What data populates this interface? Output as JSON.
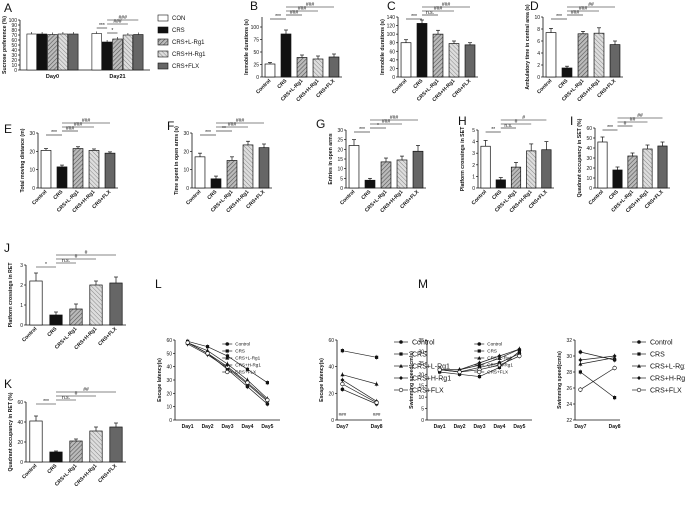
{
  "legend": {
    "entries": [
      {
        "label": "CON",
        "fill": "#ffffff"
      },
      {
        "label": "CRS",
        "fill": "#111111"
      },
      {
        "label": "CRS+L-Rg1",
        "fill": "#777777"
      },
      {
        "label": "CRS+H-Rg1",
        "fill": "#aaaaaa"
      },
      {
        "label": "CRS+FLX",
        "fill": "#555555"
      }
    ]
  },
  "chart_data": [
    {
      "panel": "A",
      "type": "bar",
      "ylabel": "Sucrose preference (%)",
      "ylim": [
        0,
        100
      ],
      "yticks": [
        0,
        10,
        20,
        30,
        40,
        50,
        60,
        70,
        80,
        90,
        100
      ],
      "categories": [
        "Day0",
        "Day21"
      ],
      "series": [
        {
          "name": "CON",
          "values": [
            72,
            73
          ]
        },
        {
          "name": "CRS",
          "values": [
            72,
            56
          ]
        },
        {
          "name": "CRS+L-Rg1",
          "values": [
            71,
            62
          ]
        },
        {
          "name": "CRS+H-Rg1",
          "values": [
            72,
            70
          ]
        },
        {
          "name": "CRS+FLX",
          "values": [
            72,
            71
          ]
        }
      ],
      "annotations": [
        "***",
        "*",
        "###",
        "###"
      ]
    },
    {
      "panel": "B",
      "type": "bar",
      "ylabel": "Immobile durations (s)",
      "ylim": [
        0,
        120
      ],
      "yticks": [
        0,
        25,
        50,
        75,
        100,
        125
      ],
      "categories": [
        "Control",
        "CRS",
        "CRS+L-Rg1",
        "CRS+H-Rg1",
        "CRS+FLX"
      ],
      "values": [
        26,
        86,
        39,
        36,
        40
      ],
      "errors": [
        3,
        8,
        5,
        6,
        6
      ],
      "annotations": [
        "***",
        "###",
        "###",
        "###"
      ]
    },
    {
      "panel": "C",
      "type": "bar",
      "ylabel": "Immobile durations (s)",
      "ylim": [
        0,
        140
      ],
      "yticks": [
        0,
        20,
        40,
        60,
        80,
        100,
        120,
        140
      ],
      "categories": [
        "Control",
        "CRS",
        "CRS+L-Rg1",
        "CRS+H-Rg1",
        "CRS+FLX"
      ],
      "values": [
        80,
        125,
        100,
        78,
        75
      ],
      "errors": [
        7,
        8,
        9,
        6,
        5
      ],
      "annotations": [
        "***",
        "n.s.",
        "###",
        "###"
      ]
    },
    {
      "panel": "D",
      "type": "bar",
      "ylabel": "Ambulatory time in central area (s)",
      "ylim": [
        0,
        10
      ],
      "yticks": [
        0,
        2,
        4,
        6,
        8,
        10
      ],
      "categories": [
        "Control",
        "CRS",
        "CRS+L-Rg1",
        "CRS+H-Rg1",
        "CRS+FLX"
      ],
      "values": [
        7.4,
        1.5,
        7.2,
        7.3,
        5.4
      ],
      "errors": [
        0.7,
        0.3,
        0.4,
        0.9,
        0.6
      ],
      "annotations": [
        "***",
        "###",
        "###",
        "##"
      ]
    },
    {
      "panel": "E",
      "type": "bar",
      "ylabel": "Total moving distance (m)",
      "ylim": [
        0,
        30
      ],
      "yticks": [
        0,
        10,
        20,
        30
      ],
      "categories": [
        "Control",
        "CRS",
        "CRS+L-Rg1",
        "CRS+H-Rg1",
        "CRS+FLX"
      ],
      "values": [
        20.5,
        11.5,
        21.5,
        20.5,
        19
      ],
      "errors": [
        1,
        1,
        1,
        0.8,
        0.7
      ],
      "annotations": [
        "***",
        "###",
        "###",
        "###"
      ]
    },
    {
      "panel": "F",
      "type": "bar",
      "ylabel": "Time spent in open arms (s)",
      "ylim": [
        0,
        30
      ],
      "yticks": [
        0,
        10,
        20,
        30
      ],
      "categories": [
        "Control",
        "CRS",
        "CRS+L-Rg1",
        "CRS+H-Rg1",
        "CRS+FLX"
      ],
      "values": [
        17,
        5,
        15,
        23.5,
        22
      ],
      "errors": [
        2,
        1.5,
        2,
        2,
        2
      ],
      "annotations": [
        "***",
        "**",
        "###",
        "###"
      ]
    },
    {
      "panel": "G",
      "type": "bar",
      "ylabel": "Entries in open arms",
      "ylim": [
        0,
        30
      ],
      "yticks": [
        0,
        5,
        10,
        15,
        20,
        25,
        30
      ],
      "categories": [
        "Control",
        "CRS",
        "CRS+L-Rg1",
        "CRS+H-Rg1",
        "CRS+FLX"
      ],
      "values": [
        22,
        4,
        13.5,
        14.5,
        19
      ],
      "errors": [
        3,
        1,
        2,
        2,
        3
      ],
      "annotations": [
        "***",
        "*",
        "###",
        "###"
      ]
    },
    {
      "panel": "H",
      "type": "bar",
      "ylabel": "Platform crossings in SET",
      "ylim": [
        0,
        5
      ],
      "yticks": [
        0,
        1,
        2,
        3,
        4,
        5
      ],
      "categories": [
        "Control",
        "CRS",
        "CRS+L-Rg1",
        "CRS+H-Rg1",
        "CRS+FLX"
      ],
      "values": [
        3.6,
        0.7,
        1.8,
        3.2,
        3.3
      ],
      "errors": [
        0.5,
        0.2,
        0.4,
        0.6,
        0.7
      ],
      "annotations": [
        "**",
        "n.s.",
        "#",
        "#"
      ]
    },
    {
      "panel": "I",
      "type": "bar",
      "ylabel": "Quadrant occupancy in SET (%)",
      "ylim": [
        0,
        60
      ],
      "yticks": [
        0,
        10,
        20,
        30,
        40,
        50,
        60
      ],
      "categories": [
        "Control",
        "CRS",
        "CRS+L-Rg1",
        "CRS+H-Rg1",
        "CRS+FLX"
      ],
      "values": [
        46,
        18,
        32,
        39,
        42
      ],
      "errors": [
        5,
        3,
        3,
        4,
        4
      ],
      "annotations": [
        "***",
        "#",
        "##",
        "##"
      ]
    },
    {
      "panel": "J",
      "type": "bar",
      "ylabel": "Platform crossings in RET",
      "ylim": [
        0,
        3
      ],
      "yticks": [
        0,
        1,
        2,
        3
      ],
      "categories": [
        "Control",
        "CRS",
        "CRS+L-Rg1",
        "CRS+H-Rg1",
        "CRS+FLX"
      ],
      "values": [
        2.2,
        0.5,
        0.8,
        2.0,
        2.1
      ],
      "errors": [
        0.4,
        0.15,
        0.25,
        0.2,
        0.3
      ],
      "annotations": [
        "*",
        "n.s.",
        "#",
        "#"
      ]
    },
    {
      "panel": "K",
      "type": "bar",
      "ylabel": "Quadrant occupancy in RET (%)",
      "ylim": [
        0,
        60
      ],
      "yticks": [
        0,
        20,
        40,
        60
      ],
      "categories": [
        "Control",
        "CRS",
        "CRS+L-Rg1",
        "CRS+H-Rg1",
        "CRS+FLX"
      ],
      "values": [
        41,
        10,
        21,
        31,
        35
      ],
      "errors": [
        5,
        1,
        2,
        4,
        4
      ],
      "annotations": [
        "***",
        "n.s.",
        "#",
        "##"
      ]
    },
    {
      "panel": "L1",
      "type": "line",
      "ylabel": "Escape latency(s)",
      "ylim": [
        0,
        60
      ],
      "yticks": [
        0,
        10,
        20,
        30,
        40,
        50,
        60
      ],
      "categories": [
        "Day1",
        "Day2",
        "Day3",
        "Day4",
        "Day5"
      ],
      "series": [
        {
          "name": "Control",
          "values": [
            58,
            50,
            38,
            25,
            12
          ]
        },
        {
          "name": "CRS",
          "values": [
            59,
            55,
            48,
            38,
            28
          ]
        },
        {
          "name": "CRS+L-Rg1",
          "values": [
            58,
            52,
            42,
            30,
            16
          ]
        },
        {
          "name": "CRS+H-Rg1",
          "values": [
            57,
            49,
            39,
            27,
            14
          ]
        },
        {
          "name": "CRS+FLX",
          "values": [
            58,
            50,
            40,
            28,
            15
          ]
        }
      ]
    },
    {
      "panel": "L2",
      "type": "line",
      "ylabel": "Escape latency(s)",
      "ylim": [
        0,
        60
      ],
      "yticks": [
        0,
        20,
        40,
        60
      ],
      "categories": [
        "Day7",
        "Day8"
      ],
      "series": [
        {
          "name": "Control",
          "values": [
            23,
            12
          ]
        },
        {
          "name": "CRS",
          "values": [
            52,
            47
          ]
        },
        {
          "name": "CRS+L-Rg1",
          "values": [
            34,
            27
          ]
        },
        {
          "name": "CRS+H-Rg1",
          "values": [
            30,
            14
          ]
        },
        {
          "name": "CRS+FLX",
          "values": [
            27,
            13
          ]
        }
      ],
      "annotations": [
        "###",
        "###"
      ]
    },
    {
      "panel": "M1",
      "type": "line",
      "ylabel": "Swimming speed(cm/s)",
      "ylim": [
        0,
        35
      ],
      "yticks": [
        0,
        5,
        10,
        15,
        20,
        25,
        30,
        35
      ],
      "categories": [
        "Day1",
        "Day2",
        "Day3",
        "Day4",
        "Day5"
      ],
      "series": [
        {
          "name": "Control",
          "values": [
            22,
            21,
            23,
            25,
            29
          ]
        },
        {
          "name": "CRS",
          "values": [
            21,
            20,
            19,
            23,
            30
          ]
        },
        {
          "name": "CRS+L-Rg1",
          "values": [
            22,
            22,
            24,
            27,
            31
          ]
        },
        {
          "name": "CRS+H-Rg1",
          "values": [
            22,
            22,
            25,
            28,
            31
          ]
        },
        {
          "name": "CRS+FLX",
          "values": [
            22,
            21,
            22,
            24,
            28
          ]
        }
      ]
    },
    {
      "panel": "M2",
      "type": "line",
      "ylabel": "Swimming speed(cm/s)",
      "ylim": [
        22,
        32
      ],
      "yticks": [
        22,
        24,
        26,
        28,
        30,
        32
      ],
      "categories": [
        "Day7",
        "Day8"
      ],
      "series": [
        {
          "name": "Control",
          "values": [
            30.5,
            29.5
          ]
        },
        {
          "name": "CRS",
          "values": [
            28,
            24.8
          ]
        },
        {
          "name": "CRS+L-Rg1",
          "values": [
            29,
            29.8
          ]
        },
        {
          "name": "CRS+H-Rg1",
          "values": [
            29.5,
            30
          ]
        },
        {
          "name": "CRS+FLX",
          "values": [
            25.8,
            28.5
          ]
        }
      ]
    }
  ]
}
